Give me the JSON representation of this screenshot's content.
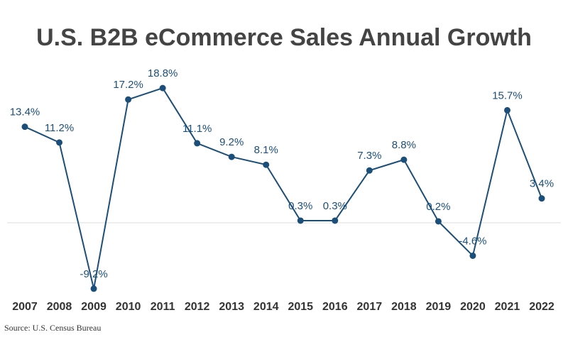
{
  "chart_data": {
    "type": "line",
    "title": "U.S. B2B eCommerce Sales Annual Growth",
    "categories": [
      "2007",
      "2008",
      "2009",
      "2010",
      "2011",
      "2012",
      "2013",
      "2014",
      "2015",
      "2016",
      "2017",
      "2018",
      "2019",
      "2020",
      "2021",
      "2022"
    ],
    "values": [
      13.4,
      11.2,
      -9.2,
      17.2,
      18.8,
      11.1,
      9.2,
      8.1,
      0.3,
      0.3,
      7.3,
      8.8,
      0.2,
      -4.6,
      15.7,
      3.4
    ],
    "value_labels": [
      "13.4%",
      "11.2%",
      "-9.2%",
      "17.2%",
      "18.8%",
      "11.1%",
      "9.2%",
      "8.1%",
      "0.3%",
      "0.3%",
      "7.3%",
      "8.8%",
      "0.2%",
      "-4.6%",
      "15.7%",
      "3.4%"
    ],
    "color": "#1b4f7a",
    "ylim": [
      -10,
      20
    ],
    "source": "Source: U.S. Census Bureau"
  }
}
